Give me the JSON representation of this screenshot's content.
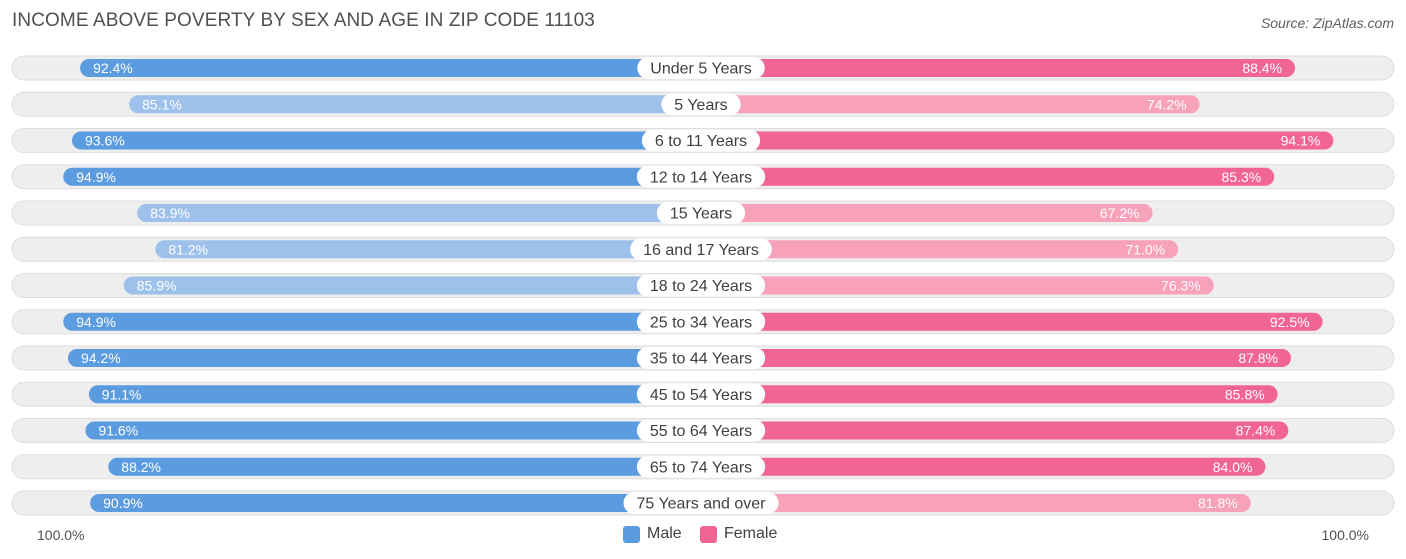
{
  "title": "INCOME ABOVE POVERTY BY SEX AND AGE IN ZIP CODE 11103",
  "source": "Source: ZipAtlas.com",
  "colors": {
    "male_strong": "#5b9bdf",
    "male_light": "#9ec1eb",
    "female_strong": "#f06592",
    "female_light": "#f7a1bb",
    "track": "#eeeeee"
  },
  "legend": {
    "male": "Male",
    "female": "Female"
  },
  "axis": {
    "left_label": "100.0%",
    "right_label": "100.0%"
  },
  "chart_data": {
    "type": "bar",
    "orientation": "diverging-horizontal",
    "title": "INCOME ABOVE POVERTY BY SEX AND AGE IN ZIP CODE 11103",
    "categories": [
      "Under 5 Years",
      "5 Years",
      "6 to 11 Years",
      "12 to 14 Years",
      "15 Years",
      "16 and 17 Years",
      "18 to 24 Years",
      "25 to 34 Years",
      "35 to 44 Years",
      "45 to 54 Years",
      "55 to 64 Years",
      "65 to 74 Years",
      "75 Years and over"
    ],
    "series": [
      {
        "name": "Male",
        "values": [
          92.4,
          85.1,
          93.6,
          94.9,
          83.9,
          81.2,
          85.9,
          94.9,
          94.2,
          91.1,
          91.6,
          88.2,
          90.9
        ],
        "labels": [
          "92.4%",
          "85.1%",
          "93.6%",
          "94.9%",
          "83.9%",
          "81.2%",
          "85.9%",
          "94.9%",
          "94.2%",
          "91.1%",
          "91.6%",
          "88.2%",
          "90.9%"
        ]
      },
      {
        "name": "Female",
        "values": [
          88.4,
          74.2,
          94.1,
          85.3,
          67.2,
          71.0,
          76.3,
          92.5,
          87.8,
          85.8,
          87.4,
          84.0,
          81.8
        ],
        "labels": [
          "88.4%",
          "74.2%",
          "94.1%",
          "85.3%",
          "67.2%",
          "71.0%",
          "76.3%",
          "92.5%",
          "87.8%",
          "85.8%",
          "87.4%",
          "84.0%",
          "81.8%"
        ]
      }
    ],
    "xlim": [
      0,
      100
    ],
    "legend_position": "bottom-center"
  }
}
